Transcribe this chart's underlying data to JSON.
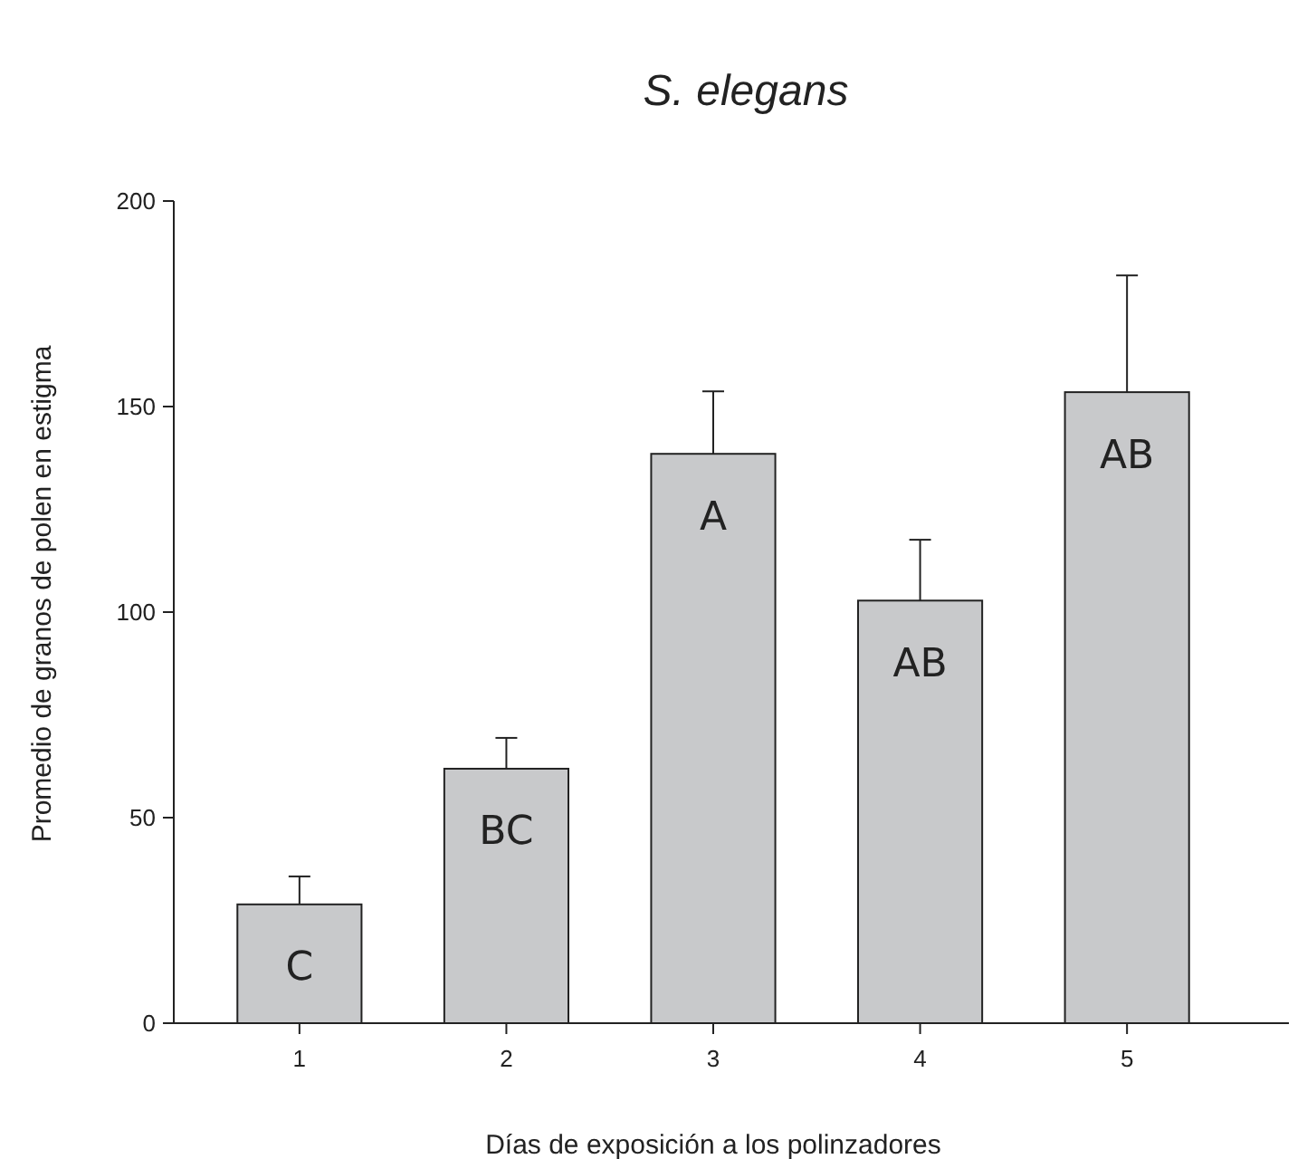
{
  "chart_data": {
    "type": "bar",
    "title": "S. elegans",
    "xlabel": "Días de exposición a los polinzadores",
    "ylabel": "Promedio de granos de polen en estigma",
    "categories": [
      "1",
      "2",
      "3",
      "4",
      "5"
    ],
    "values": [
      28.9,
      61.9,
      138.5,
      102.8,
      153.5
    ],
    "errors": [
      [
        28.9,
        35.7
      ],
      [
        61.9,
        69.4
      ],
      [
        138.5,
        153.7
      ],
      [
        102.8,
        117.6
      ],
      [
        153.5,
        181.9
      ]
    ],
    "color": "#c8c9cb",
    "ylim": [
      0,
      200
    ],
    "yticks": [
      0,
      50,
      100,
      150,
      200
    ],
    "grid": false,
    "annotations": [
      "C",
      "BC",
      "A",
      "AB",
      "AB"
    ]
  }
}
